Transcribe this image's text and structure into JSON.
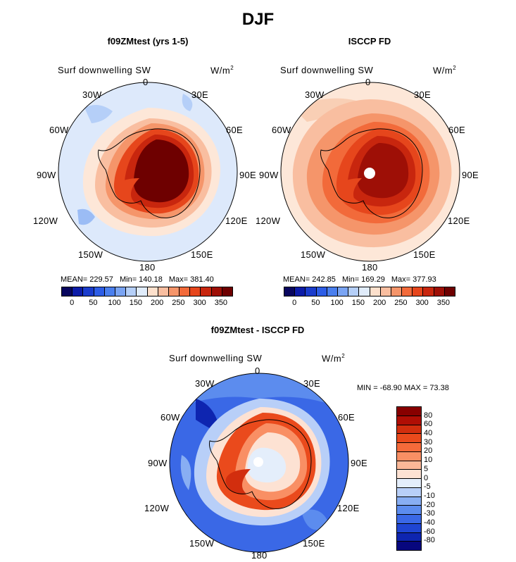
{
  "page_title": "DJF",
  "panels": [
    {
      "title": "f09ZMtest (yrs 1-5)",
      "var_label": "Surf downwelling SW",
      "units": "W/m",
      "units_sup": "2",
      "lon_labels": [
        "0",
        "30E",
        "60E",
        "90E",
        "120E",
        "150E",
        "180",
        "150W",
        "120W",
        "90W",
        "60W",
        "30W"
      ],
      "stats": {
        "mean": "MEAN= 229.57",
        "min": "Min= 140.18",
        "max": "Max= 381.40"
      },
      "colorbar_ticks": [
        "0",
        "50",
        "100",
        "150",
        "200",
        "250",
        "300",
        "350"
      ]
    },
    {
      "title": "ISCCP FD",
      "var_label": "Surf downwelling SW",
      "units": "W/m",
      "units_sup": "2",
      "lon_labels": [
        "0",
        "30E",
        "60E",
        "90E",
        "120E",
        "150E",
        "180",
        "150W",
        "120W",
        "90W",
        "60W",
        "30W"
      ],
      "stats": {
        "mean": "MEAN= 242.85",
        "min": "Min= 169.29",
        "max": "Max= 377.93"
      },
      "colorbar_ticks": [
        "0",
        "50",
        "100",
        "150",
        "200",
        "250",
        "300",
        "350"
      ]
    },
    {
      "title": "f09ZMtest - ISCCP FD",
      "var_label": "Surf downwelling SW",
      "units": "W/m",
      "units_sup": "2",
      "lon_labels": [
        "0",
        "30E",
        "60E",
        "90E",
        "120E",
        "150E",
        "180",
        "150W",
        "120W",
        "90W",
        "60W",
        "30W"
      ],
      "minmax": "MIN = -68.90 MAX =  73.38",
      "colorbar_ticks": [
        "80",
        "60",
        "40",
        "30",
        "20",
        "10",
        "5",
        "0",
        "-5",
        "-10",
        "-20",
        "-30",
        "-40",
        "-60",
        "-80"
      ]
    }
  ],
  "colors": {
    "abs_scale": [
      "#08065e",
      "#0c1ca8",
      "#1a3ccc",
      "#2d5de6",
      "#4a7fee",
      "#7aa4f3",
      "#b5cff8",
      "#e0ecfb",
      "#fde0cc",
      "#f9bea0",
      "#f5956a",
      "#f26a3a",
      "#e6461c",
      "#c8260e",
      "#9e0f06",
      "#6e0000"
    ],
    "diff_scale": [
      "#880000",
      "#b00e05",
      "#d22e0e",
      "#ea4a1c",
      "#f56a3a",
      "#f98f64",
      "#fbb898",
      "#fde2d3",
      "#e4eefb",
      "#b8cff8",
      "#88aef3",
      "#5c8cee",
      "#3a68e6",
      "#1f45d2",
      "#0e25b0",
      "#07077e"
    ]
  }
}
